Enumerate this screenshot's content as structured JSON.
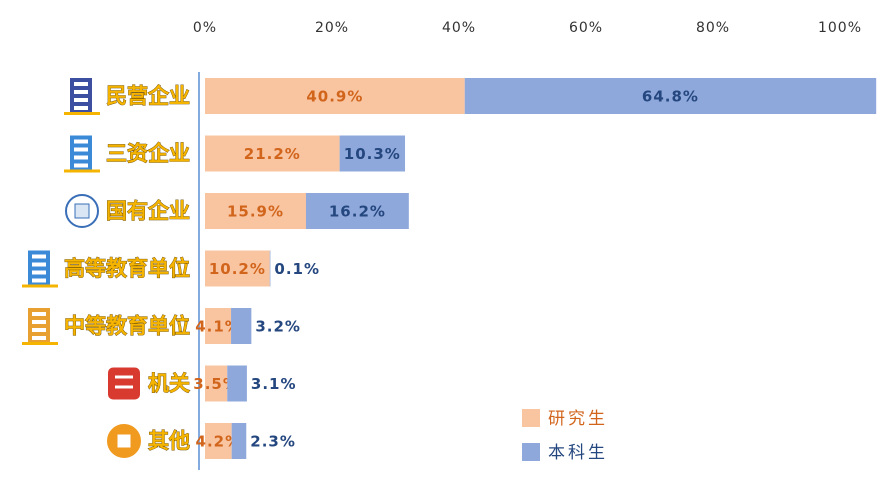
{
  "chart_data": {
    "type": "stacked-bar-horizontal",
    "categories": [
      "民营企业",
      "三资企业",
      "国有企业",
      "高等教育单位",
      "中等教育单位",
      "机关",
      "其他"
    ],
    "series": [
      {
        "name": "研究生",
        "color": "#f9c4a0",
        "label_color": "#d2651c",
        "values": [
          40.9,
          21.2,
          15.9,
          10.2,
          4.1,
          3.5,
          4.2
        ],
        "value_labels": [
          "40.9%",
          "21.2%",
          "15.9%",
          "10.2%",
          "4.1%",
          "3.5%",
          "4.2%"
        ]
      },
      {
        "name": "本科生",
        "color": "#8fa8db",
        "label_color": "#24477f",
        "values": [
          64.8,
          10.3,
          16.2,
          0.1,
          3.2,
          3.1,
          2.3
        ],
        "value_labels": [
          "64.8%",
          "10.3%",
          "16.2%",
          "0.1%",
          "3.2%",
          "3.1%",
          "2.3%"
        ]
      }
    ],
    "xlim": [
      0,
      100
    ],
    "xticks": [
      {
        "value": 0,
        "label": "0%"
      },
      {
        "value": 20,
        "label": "20%"
      },
      {
        "value": 40,
        "label": "40%"
      },
      {
        "value": 60,
        "label": "60%"
      },
      {
        "value": 80,
        "label": "80%"
      },
      {
        "value": 100,
        "label": "100%"
      }
    ],
    "legend": "lower right"
  }
}
